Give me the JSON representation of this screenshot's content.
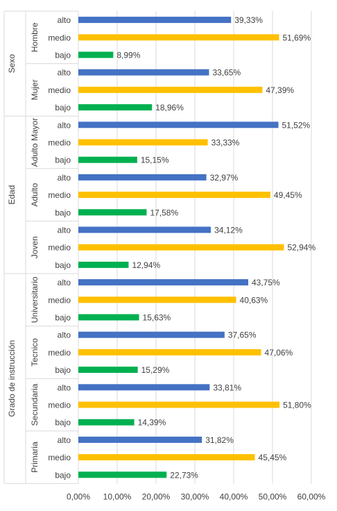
{
  "chart_data": {
    "type": "bar",
    "orientation": "horizontal",
    "title": "",
    "xlabel": "",
    "ylabel": "",
    "xlim": [
      0,
      60
    ],
    "x_tick_labels": [
      "0,00%",
      "10,00%",
      "20,00%",
      "30,00%",
      "40,00%",
      "50,00%",
      "60,00%"
    ],
    "grid": true,
    "legend": "none",
    "level_colors": {
      "alto": "#4472C4",
      "medio": "#FFC000",
      "bajo": "#00B050"
    },
    "groups": [
      {
        "name": "Sexo",
        "subgroups": [
          {
            "name": "Hombre",
            "bars": [
              {
                "level": "alto",
                "value": 39.33,
                "label": "39,33%"
              },
              {
                "level": "medio",
                "value": 51.69,
                "label": "51,69%"
              },
              {
                "level": "bajo",
                "value": 8.99,
                "label": "8,99%"
              }
            ]
          },
          {
            "name": "Mujer",
            "bars": [
              {
                "level": "alto",
                "value": 33.65,
                "label": "33,65%"
              },
              {
                "level": "medio",
                "value": 47.39,
                "label": "47,39%"
              },
              {
                "level": "bajo",
                "value": 18.96,
                "label": "18,96%"
              }
            ]
          }
        ]
      },
      {
        "name": "Edad",
        "subgroups": [
          {
            "name": "Adulto Mayor",
            "bars": [
              {
                "level": "alto",
                "value": 51.52,
                "label": "51,52%"
              },
              {
                "level": "medio",
                "value": 33.33,
                "label": "33,33%"
              },
              {
                "level": "bajo",
                "value": 15.15,
                "label": "15,15%"
              }
            ]
          },
          {
            "name": "Adulto",
            "bars": [
              {
                "level": "alto",
                "value": 32.97,
                "label": "32,97%"
              },
              {
                "level": "medio",
                "value": 49.45,
                "label": "49,45%"
              },
              {
                "level": "bajo",
                "value": 17.58,
                "label": "17,58%"
              }
            ]
          },
          {
            "name": "Joven",
            "bars": [
              {
                "level": "alto",
                "value": 34.12,
                "label": "34,12%"
              },
              {
                "level": "medio",
                "value": 52.94,
                "label": "52,94%"
              },
              {
                "level": "bajo",
                "value": 12.94,
                "label": "12,94%"
              }
            ]
          }
        ]
      },
      {
        "name": "Grado de instrucción",
        "subgroups": [
          {
            "name": "Universitario",
            "bars": [
              {
                "level": "alto",
                "value": 43.75,
                "label": "43,75%"
              },
              {
                "level": "medio",
                "value": 40.63,
                "label": "40,63%"
              },
              {
                "level": "bajo",
                "value": 15.63,
                "label": "15,63%"
              }
            ]
          },
          {
            "name": "Tecnico",
            "bars": [
              {
                "level": "alto",
                "value": 37.65,
                "label": "37,65%"
              },
              {
                "level": "medio",
                "value": 47.06,
                "label": "47,06%"
              },
              {
                "level": "bajo",
                "value": 15.29,
                "label": "15,29%"
              }
            ]
          },
          {
            "name": "Secundaria",
            "bars": [
              {
                "level": "alto",
                "value": 33.81,
                "label": "33,81%"
              },
              {
                "level": "medio",
                "value": 51.8,
                "label": "51,80%"
              },
              {
                "level": "bajo",
                "value": 14.39,
                "label": "14,39%"
              }
            ]
          },
          {
            "name": "Primaria",
            "bars": [
              {
                "level": "alto",
                "value": 31.82,
                "label": "31,82%"
              },
              {
                "level": "medio",
                "value": 45.45,
                "label": "45,45%"
              },
              {
                "level": "bajo",
                "value": 22.73,
                "label": "22,73%"
              }
            ]
          }
        ]
      }
    ]
  }
}
